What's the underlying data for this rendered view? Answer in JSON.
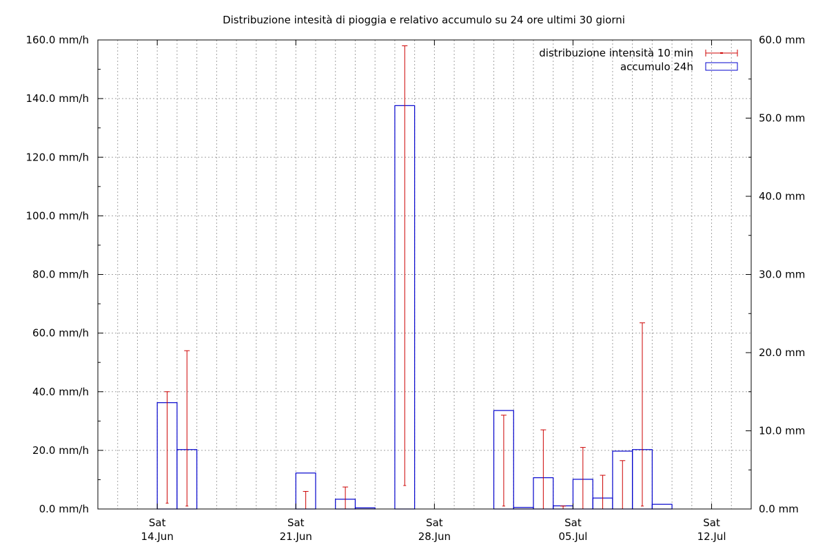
{
  "chart_data": {
    "type": "bar",
    "title": "Distribuzione intesità di pioggia e relativo accumulo su 24 ore ultimi 30 giorni",
    "y_left": {
      "min": 0,
      "max": 160,
      "ticks": [
        0,
        20,
        40,
        60,
        80,
        100,
        120,
        140,
        160
      ],
      "tick_labels": [
        "0.0 mm/h",
        "20.0 mm/h",
        "40.0 mm/h",
        "60.0 mm/h",
        "80.0 mm/h",
        "100.0 mm/h",
        "120.0 mm/h",
        "140.0 mm/h",
        "160.0 mm/h"
      ]
    },
    "y_right": {
      "min": 0,
      "max": 60,
      "ticks": [
        0,
        10,
        20,
        30,
        40,
        50,
        60
      ],
      "tick_labels": [
        "0.0 mm",
        "10.0 mm",
        "20.0 mm",
        "30.0 mm",
        "40.0 mm",
        "50.0 mm",
        "60.0 mm"
      ]
    },
    "x_axis": {
      "start": "2025-06-11",
      "end": "2025-07-14",
      "ticks": [
        {
          "date": "2025-06-14",
          "line1": "Sat",
          "line2": "14.Jun"
        },
        {
          "date": "2025-06-21",
          "line1": "Sat",
          "line2": "21.Jun"
        },
        {
          "date": "2025-06-28",
          "line1": "Sat",
          "line2": "28.Jun"
        },
        {
          "date": "2025-07-05",
          "line1": "Sat",
          "line2": "05.Jul"
        },
        {
          "date": "2025-07-12",
          "line1": "Sat",
          "line2": "12.Jul"
        }
      ]
    },
    "grid": true,
    "legend_position": "top-right",
    "series": [
      {
        "name": "distribuzione intensità 10 min",
        "type": "errorbar",
        "axis": "left",
        "color": "#cc0000",
        "points": [
          {
            "date": "2025-06-14",
            "low": 2,
            "high": 40
          },
          {
            "date": "2025-06-15",
            "low": 1,
            "high": 54
          },
          {
            "date": "2025-06-21",
            "low": 0,
            "high": 6
          },
          {
            "date": "2025-06-23",
            "low": 0,
            "high": 7.5
          },
          {
            "date": "2025-06-26",
            "low": 8,
            "high": 158
          },
          {
            "date": "2025-07-01",
            "low": 1,
            "high": 32
          },
          {
            "date": "2025-07-03",
            "low": 0,
            "high": 27
          },
          {
            "date": "2025-07-04",
            "low": 0,
            "high": 1
          },
          {
            "date": "2025-07-05",
            "low": 0,
            "high": 21
          },
          {
            "date": "2025-07-06",
            "low": 0,
            "high": 11.5
          },
          {
            "date": "2025-07-07",
            "low": 0,
            "high": 16.5
          },
          {
            "date": "2025-07-08",
            "low": 1,
            "high": 63.5
          }
        ]
      },
      {
        "name": "accumulo 24h",
        "type": "bar",
        "axis": "right",
        "color": "#0000cc",
        "points": [
          {
            "date": "2025-06-14",
            "value": 13.6
          },
          {
            "date": "2025-06-15",
            "value": 7.6
          },
          {
            "date": "2025-06-21",
            "value": 4.6
          },
          {
            "date": "2025-06-23",
            "value": 1.25
          },
          {
            "date": "2025-06-24",
            "value": 0.15
          },
          {
            "date": "2025-06-26",
            "value": 51.6
          },
          {
            "date": "2025-07-01",
            "value": 12.6
          },
          {
            "date": "2025-07-02",
            "value": 0.2
          },
          {
            "date": "2025-07-03",
            "value": 4.0
          },
          {
            "date": "2025-07-04",
            "value": 0.4
          },
          {
            "date": "2025-07-05",
            "value": 3.8
          },
          {
            "date": "2025-07-06",
            "value": 1.4
          },
          {
            "date": "2025-07-07",
            "value": 7.4
          },
          {
            "date": "2025-07-08",
            "value": 7.6
          },
          {
            "date": "2025-07-09",
            "value": 0.6
          }
        ]
      }
    ]
  }
}
